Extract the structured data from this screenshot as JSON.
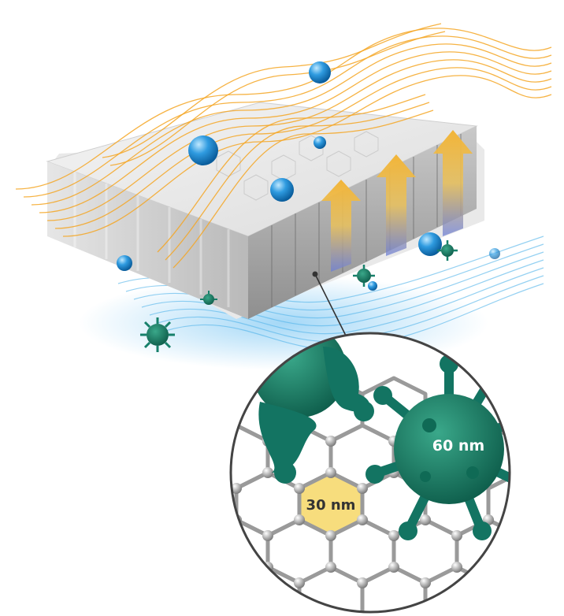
{
  "labels": {
    "large_particle_size": "60 nm",
    "pore_size": "30 nm"
  },
  "colors": {
    "warm_flow": "#f5a623",
    "cool_flow": "#4fb3ea",
    "water_drop": "#1e8fd6",
    "virus": "#16806a",
    "pore_highlight": "#f7dd7d",
    "membrane": "#d9d9d9",
    "lattice": "#9a9a9a"
  },
  "icons": [
    "water-droplet-icon",
    "virus-particle-icon",
    "upward-arrow-icon",
    "magnifier-callout-icon"
  ]
}
